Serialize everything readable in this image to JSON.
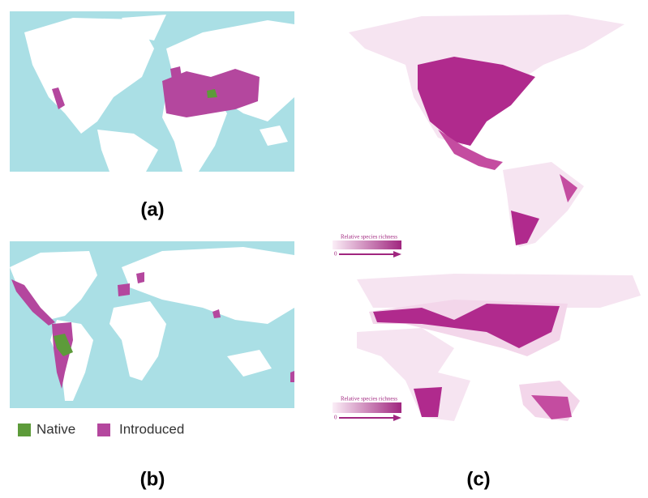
{
  "panels": [
    {
      "label": "(a)"
    },
    {
      "label": "(b)"
    },
    {
      "label": "(c)"
    }
  ],
  "legend": [
    {
      "name": "Native",
      "color": "#5d9b3a"
    },
    {
      "name": "Introduced",
      "color": "#b4479e"
    }
  ],
  "richness_legends": [
    {
      "title": "Relative species richness",
      "min_label": "0"
    },
    {
      "title": "Relative species richness",
      "min_label": "0"
    }
  ]
}
